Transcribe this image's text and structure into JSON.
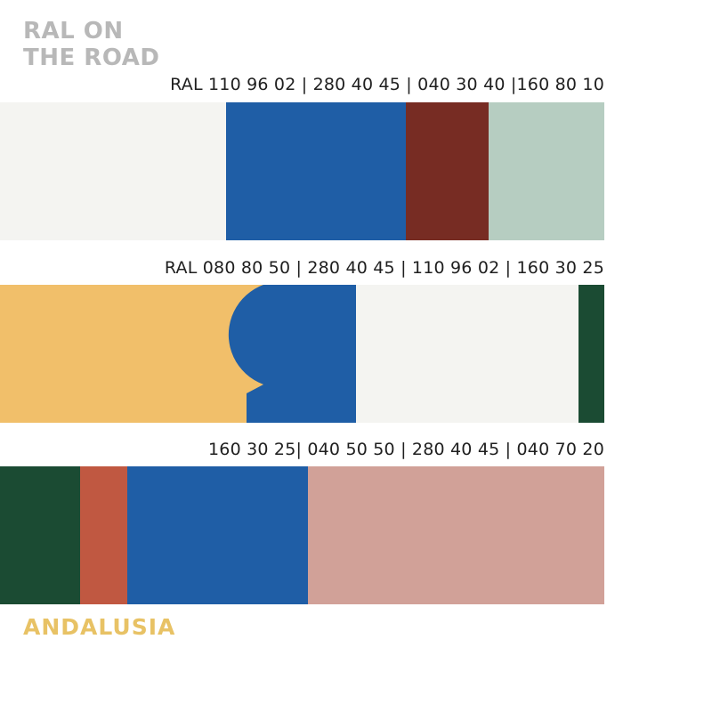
{
  "title": {
    "line1": "RAL ON",
    "line2": "THE ROAD"
  },
  "rows": [
    {
      "codes_label": "RAL 110 96 02 | 280 40 45 | 040 30 40 |160 80 10",
      "swatches": [
        {
          "code": "110 96 02",
          "color": "#f4f4f1"
        },
        {
          "code": "280 40 45",
          "color": "#1f5ea6"
        },
        {
          "code": "040 30 40",
          "color": "#772c23"
        },
        {
          "code": "160 80 10",
          "color": "#b6cdc1"
        }
      ]
    },
    {
      "codes_label": "RAL 080 80 50 | 280 40 45 | 110 96 02 | 160 30 25",
      "swatches": [
        {
          "code": "080 80 50",
          "color": "#f1bf6a"
        },
        {
          "code": "280 40 45",
          "color": "#1f5ea6"
        },
        {
          "code": "110 96 02",
          "color": "#f4f4f1"
        },
        {
          "code": "160 30 25",
          "color": "#1b4b33"
        }
      ]
    },
    {
      "codes_label": "160 30 25| 040 50 50 | 280 40 45 | 040 70 20",
      "swatches": [
        {
          "code": "160 30 25",
          "color": "#1b4b33"
        },
        {
          "code": "040 50 50",
          "color": "#c05841"
        },
        {
          "code": "280 40 45",
          "color": "#1f5ea6"
        },
        {
          "code": "040 70 20",
          "color": "#d1a198"
        }
      ]
    }
  ],
  "footer": {
    "region": "ANDALUSIA"
  }
}
